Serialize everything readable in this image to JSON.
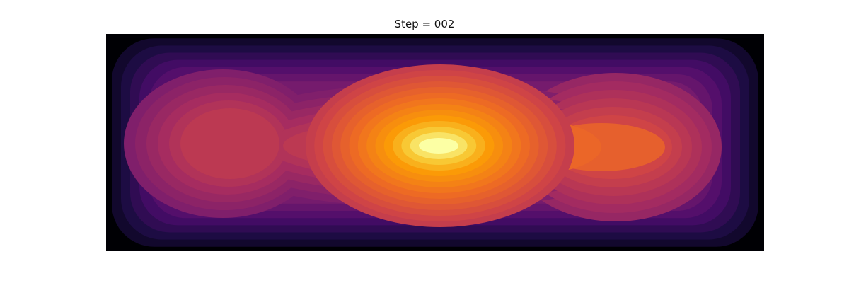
{
  "chart_data": {
    "type": "heatmap",
    "title": "Step = 002",
    "xlabel": "",
    "ylabel": "",
    "colormap": "inferno",
    "grid": false,
    "axes_visible": false,
    "colors": {
      "background": "#000004",
      "low": "#1b0c41",
      "mid_low": "#781c6d",
      "mid": "#bb3754",
      "mid_high": "#ed6925",
      "high": "#fbb61a",
      "peak": "#fcffa4"
    },
    "levels": [
      0.05,
      0.1,
      0.15,
      0.2,
      0.25,
      0.3,
      0.35,
      0.4,
      0.45,
      0.5,
      0.55,
      0.6,
      0.65,
      0.7,
      0.75,
      0.8,
      0.85,
      0.9,
      0.95
    ],
    "features": [
      {
        "name": "left-lobe",
        "level": 0.55
      },
      {
        "name": "center-peak",
        "level": 1.0
      },
      {
        "name": "right-lobe",
        "level": 0.7
      }
    ]
  }
}
